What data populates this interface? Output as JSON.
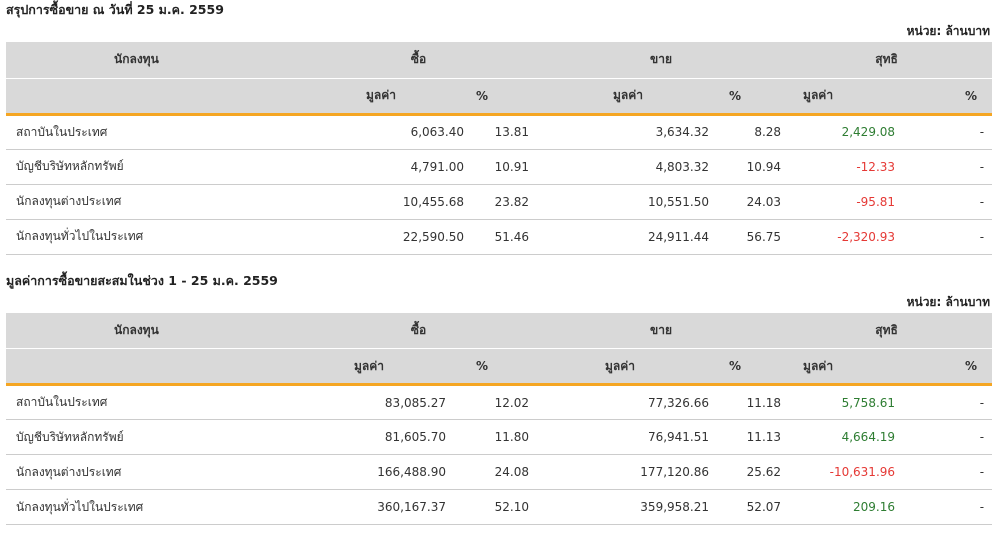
{
  "sections": [
    {
      "title": "สรุปการซื้อขาย ณ วันที่ 25 ม.ค. 2559",
      "unit": "หน่วย: ล้านบาท",
      "headers": {
        "investor": "นักลงทุน",
        "buy": "ซื้อ",
        "sell": "ขาย",
        "net": "สุทธิ",
        "value": "มูลค่า",
        "percent": "%"
      },
      "rows": [
        {
          "name": "สถาบันในประเทศ",
          "buy_value": "6,063.40",
          "buy_pct": "13.81",
          "sell_value": "3,634.32",
          "sell_pct": "8.28",
          "net_value": "2,429.08",
          "net_sign": "positive",
          "net_pct": "-"
        },
        {
          "name": "บัญชีบริษัทหลักทรัพย์",
          "buy_value": "4,791.00",
          "buy_pct": "10.91",
          "sell_value": "4,803.32",
          "sell_pct": "10.94",
          "net_value": "-12.33",
          "net_sign": "negative",
          "net_pct": "-"
        },
        {
          "name": "นักลงทุนต่างประเทศ",
          "buy_value": "10,455.68",
          "buy_pct": "23.82",
          "sell_value": "10,551.50",
          "sell_pct": "24.03",
          "net_value": "-95.81",
          "net_sign": "negative",
          "net_pct": "-"
        },
        {
          "name": "นักลงทุนทั่วไปในประเทศ",
          "buy_value": "22,590.50",
          "buy_pct": "51.46",
          "sell_value": "24,911.44",
          "sell_pct": "56.75",
          "net_value": "-2,320.93",
          "net_sign": "negative",
          "net_pct": "-"
        }
      ]
    },
    {
      "title": "มูลค่าการซื้อขายสะสมในช่วง 1 - 25 ม.ค. 2559",
      "unit": "หน่วย: ล้านบาท",
      "headers": {
        "investor": "นักลงทุน",
        "buy": "ซื้อ",
        "sell": "ขาย",
        "net": "สุทธิ",
        "value": "มูลค่า",
        "percent": "%"
      },
      "rows": [
        {
          "name": "สถาบันในประเทศ",
          "buy_value": "83,085.27",
          "buy_pct": "12.02",
          "sell_value": "77,326.66",
          "sell_pct": "11.18",
          "net_value": "5,758.61",
          "net_sign": "positive",
          "net_pct": "-"
        },
        {
          "name": "บัญชีบริษัทหลักทรัพย์",
          "buy_value": "81,605.70",
          "buy_pct": "11.80",
          "sell_value": "76,941.51",
          "sell_pct": "11.13",
          "net_value": "4,664.19",
          "net_sign": "positive",
          "net_pct": "-"
        },
        {
          "name": "นักลงทุนต่างประเทศ",
          "buy_value": "166,488.90",
          "buy_pct": "24.08",
          "sell_value": "177,120.86",
          "sell_pct": "25.62",
          "net_value": "-10,631.96",
          "net_sign": "negative",
          "net_pct": "-"
        },
        {
          "name": "นักลงทุนทั่วไปในประเทศ",
          "buy_value": "360,167.37",
          "buy_pct": "52.10",
          "sell_value": "359,958.21",
          "sell_pct": "52.07",
          "net_value": "209.16",
          "net_sign": "positive",
          "net_pct": "-"
        }
      ]
    }
  ],
  "colors": {
    "header_bg": "#d9d9d9",
    "accent_line": "#f5a623",
    "positive": "#2e7d32",
    "negative": "#e53935"
  }
}
